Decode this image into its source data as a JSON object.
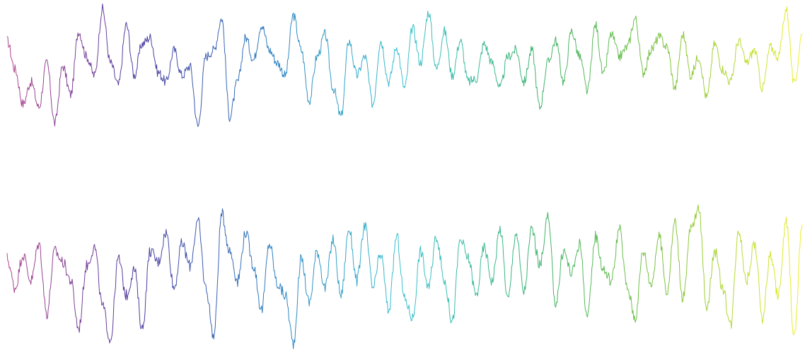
{
  "chart_data": [
    {
      "type": "line",
      "title": "",
      "xlabel": "",
      "ylabel": "",
      "grid": false,
      "legend": "none",
      "axes_visible": false,
      "colormap": [
        "#b0468e",
        "#4b3a9e",
        "#2c7fc0",
        "#39c2d0",
        "#3bb26b",
        "#7fc33a",
        "#eef02a"
      ],
      "xlim": [
        0,
        100
      ],
      "ylim": [
        -1,
        1
      ],
      "series": [
        {
          "x": [
            0,
            1,
            2,
            3,
            4,
            5,
            6,
            7,
            8,
            9,
            10,
            11,
            12,
            13,
            14,
            15,
            16,
            17,
            18,
            19,
            20,
            21,
            22,
            23,
            24,
            25,
            26,
            27,
            28,
            29,
            30,
            31,
            32,
            33,
            34,
            35,
            36,
            37,
            38,
            39,
            40,
            41,
            42,
            43,
            44,
            45,
            46,
            47,
            48,
            49,
            50,
            51,
            52,
            53,
            54,
            55,
            56,
            57,
            58,
            59,
            60,
            61,
            62,
            63,
            64,
            65,
            66,
            67,
            68,
            69,
            70,
            71,
            72,
            73,
            74,
            75,
            76,
            77,
            78,
            79,
            80,
            81,
            82,
            83,
            84,
            85,
            86,
            87,
            88,
            89,
            90,
            91,
            92,
            93,
            94,
            95,
            96,
            97,
            98,
            99,
            100
          ],
          "y": [
            0.45,
            0.0,
            -0.55,
            -0.2,
            -0.6,
            0.1,
            -0.85,
            0.05,
            -0.4,
            0.6,
            0.2,
            -0.1,
            0.95,
            0.1,
            -0.25,
            0.7,
            -0.1,
            0.4,
            0.5,
            -0.05,
            -0.2,
            0.3,
            -0.1,
            0.05,
            -0.9,
            0.2,
            0.3,
            0.8,
            -0.75,
            -0.2,
            0.5,
            0.15,
            0.7,
            0.3,
            0.1,
            -0.1,
            0.85,
            0.3,
            -0.5,
            0.2,
            0.55,
            -0.3,
            -0.75,
            0.45,
            -0.1,
            0.2,
            -0.55,
            0.45,
            -0.2,
            0.35,
            -0.3,
            0.65,
            0.1,
            0.9,
            0.0,
            0.6,
            -0.1,
            0.45,
            -0.2,
            -0.15,
            0.4,
            0.1,
            -0.3,
            0.2,
            0.3,
            -0.2,
            0.3,
            -0.6,
            0.1,
            0.45,
            -0.2,
            0.6,
            0.2,
            -0.35,
            0.7,
            -0.1,
            0.55,
            0.2,
            0.35,
            0.8,
            -0.05,
            0.3,
            0.5,
            0.35,
            -0.3,
            0.55,
            -0.1,
            0.2,
            -0.45,
            0.4,
            0.0,
            -0.2,
            0.45,
            0.1,
            0.3,
            -0.3,
            0.35,
            0.2,
            0.95,
            -0.25,
            0.55
          ]
        },
        {
          "x": [
            0,
            1,
            2,
            3,
            4,
            5,
            6,
            7,
            8,
            9,
            10,
            11,
            12,
            13,
            14,
            15,
            16,
            17,
            18,
            19,
            20,
            21,
            22,
            23,
            24,
            25,
            26,
            27,
            28,
            29,
            30,
            31,
            32,
            33,
            34,
            35,
            36,
            37,
            38,
            39,
            40,
            41,
            42,
            43,
            44,
            45,
            46,
            47,
            48,
            49,
            50,
            51,
            52,
            53,
            54,
            55,
            56,
            57,
            58,
            59,
            60,
            61,
            62,
            63,
            64,
            65,
            66,
            67,
            68,
            69,
            70,
            71,
            72,
            73,
            74,
            75,
            76,
            77,
            78,
            79,
            80,
            81,
            82,
            83,
            84,
            85,
            86,
            87,
            88,
            89,
            90,
            91,
            92,
            93,
            94,
            95,
            96,
            97,
            98,
            99,
            100
          ],
          "y": [
            0.2,
            -0.2,
            0.25,
            -0.1,
            0.4,
            -0.55,
            0.3,
            0.15,
            -0.1,
            -0.75,
            0.1,
            0.35,
            -0.45,
            -0.9,
            0.2,
            -0.3,
            0.05,
            -0.75,
            0.3,
            0.15,
            0.55,
            -0.2,
            0.4,
            0.1,
            0.7,
            -0.2,
            -0.85,
            0.8,
            0.3,
            -0.1,
            0.55,
            0.1,
            -0.5,
            0.4,
            -0.15,
            -0.3,
            -0.95,
            0.2,
            -0.4,
            0.3,
            -0.2,
            0.45,
            -0.3,
            0.6,
            -0.1,
            0.65,
            -0.2,
            0.25,
            -0.5,
            0.5,
            -0.35,
            -0.6,
            0.3,
            -0.2,
            0.5,
            -0.1,
            -0.65,
            0.45,
            0.2,
            -0.3,
            0.35,
            -0.1,
            0.6,
            -0.35,
            0.55,
            -0.25,
            0.6,
            0.1,
            0.75,
            -0.4,
            0.3,
            0.0,
            0.4,
            -0.6,
            0.5,
            0.05,
            -0.1,
            0.6,
            -0.2,
            -0.6,
            0.3,
            -0.15,
            0.5,
            -0.25,
            0.7,
            -0.35,
            0.6,
            0.85,
            -0.45,
            0.3,
            -0.2,
            -0.7,
            0.6,
            -0.1,
            0.4,
            -0.6,
            0.25,
            -0.3,
            0.7,
            -0.85,
            0.65
          ]
        }
      ]
    }
  ]
}
